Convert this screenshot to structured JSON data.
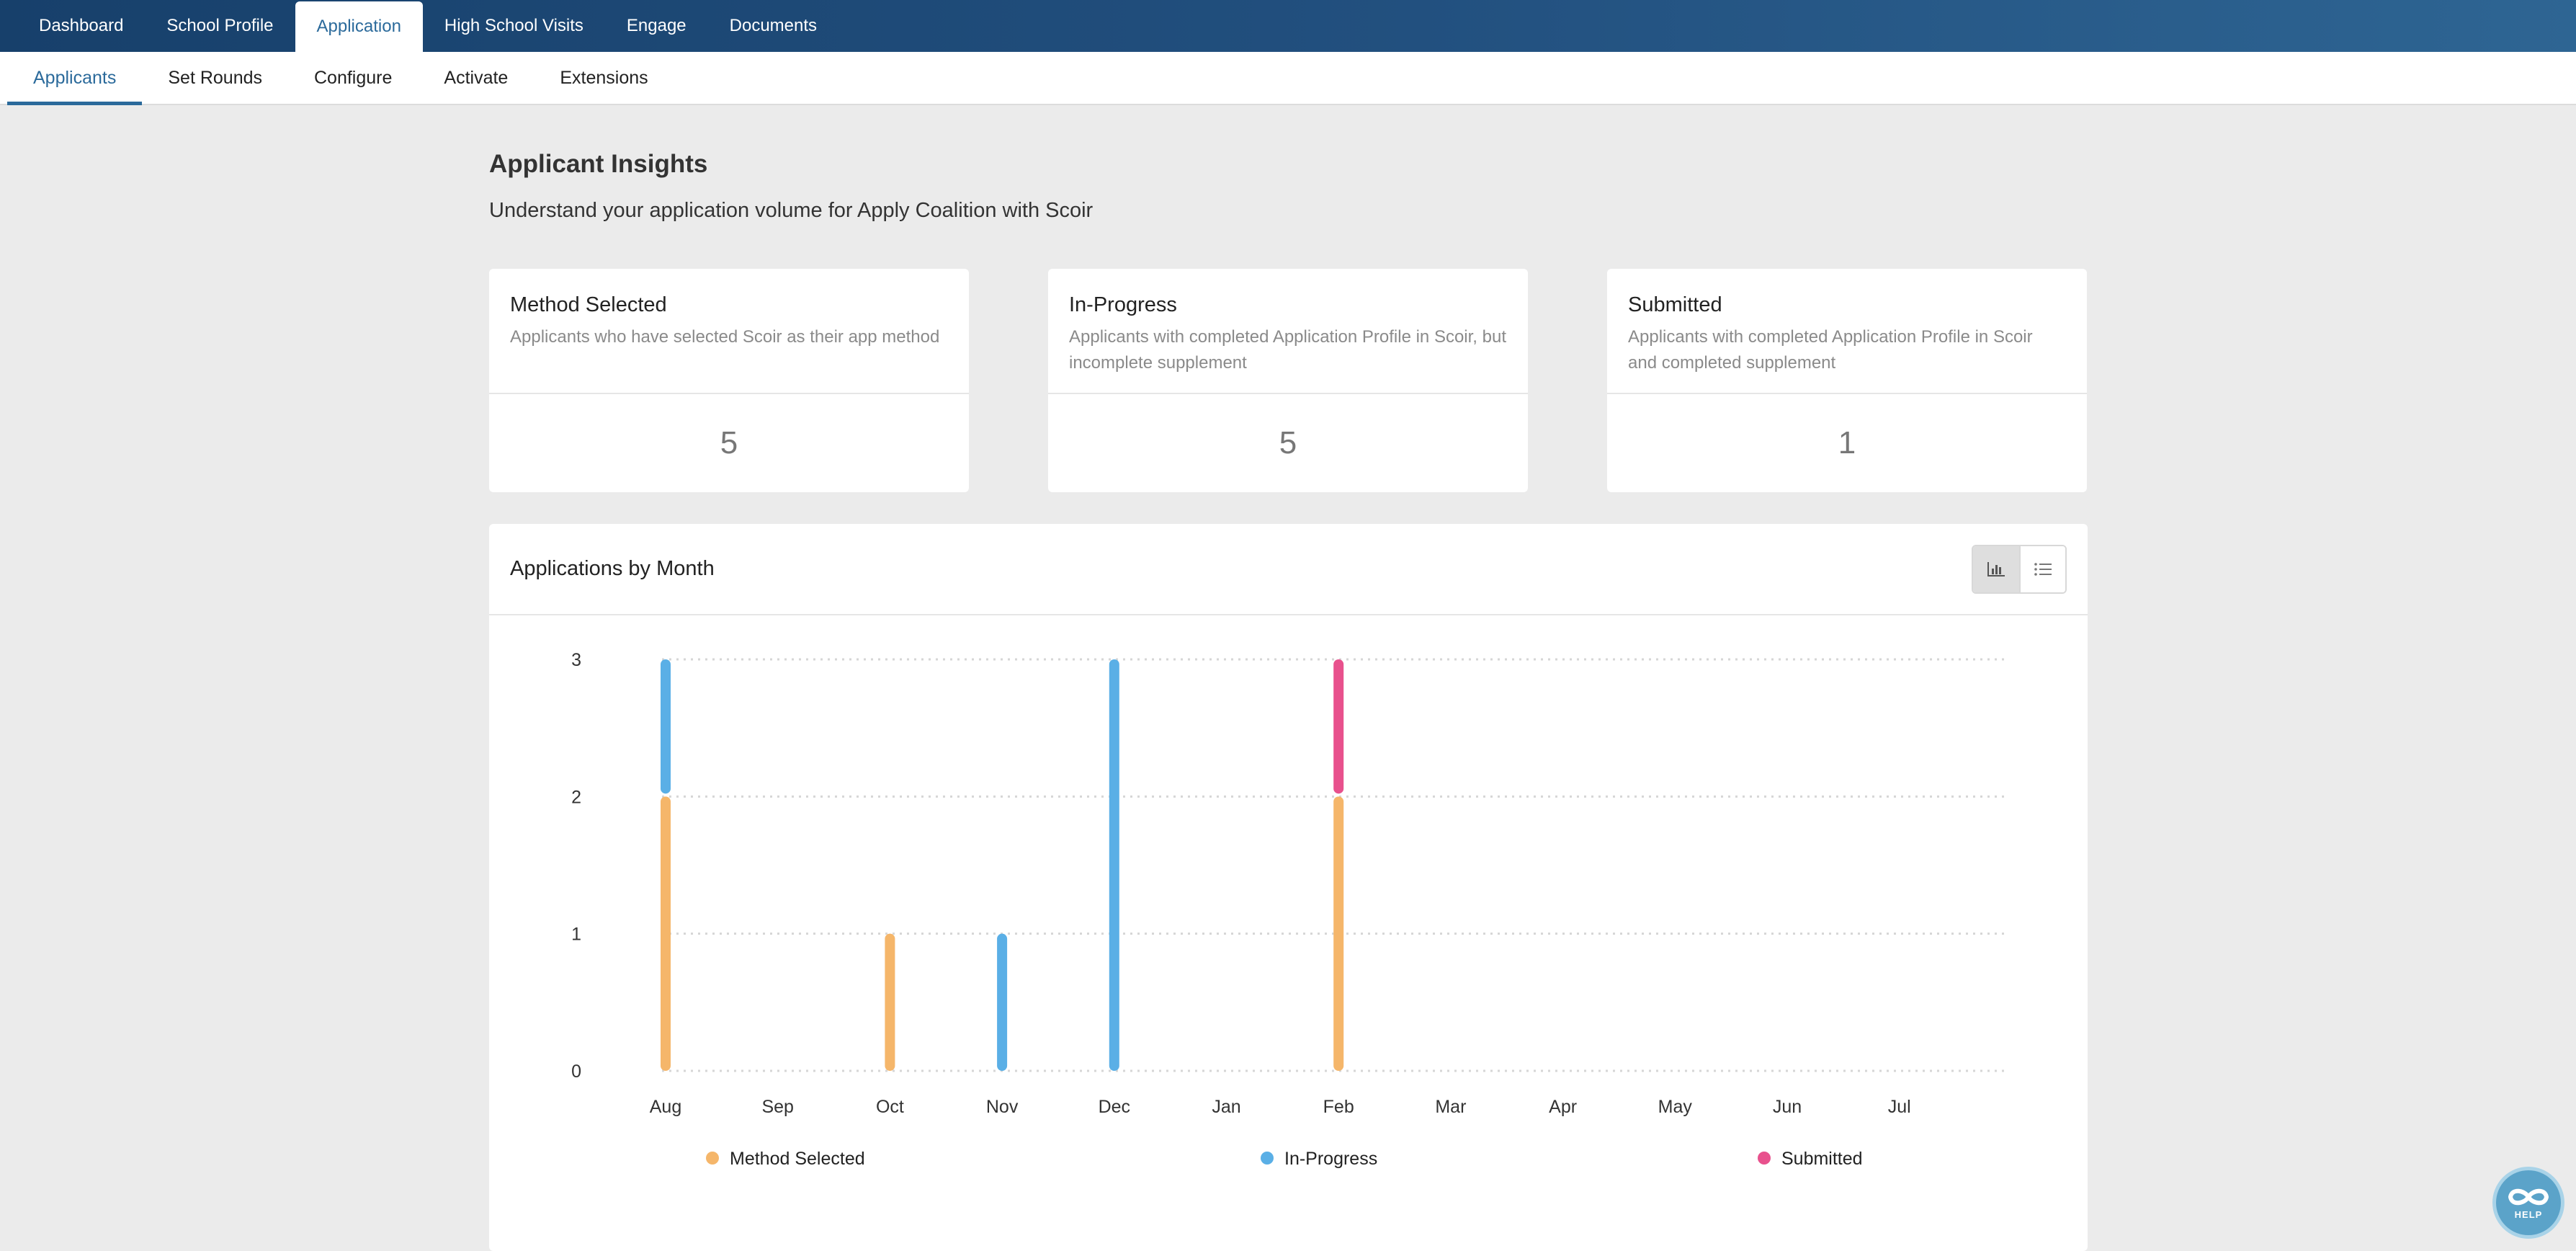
{
  "topnav": {
    "tabs": [
      {
        "label": "Dashboard"
      },
      {
        "label": "School Profile"
      },
      {
        "label": "Application",
        "active": true
      },
      {
        "label": "High School Visits"
      },
      {
        "label": "Engage"
      },
      {
        "label": "Documents"
      }
    ]
  },
  "subnav": {
    "tabs": [
      {
        "label": "Applicants",
        "active": true
      },
      {
        "label": "Set Rounds"
      },
      {
        "label": "Configure"
      },
      {
        "label": "Activate"
      },
      {
        "label": "Extensions"
      }
    ]
  },
  "page": {
    "title": "Applicant Insights",
    "subtitle": "Understand your application volume for Apply Coalition with Scoir"
  },
  "cards": [
    {
      "title": "Method Selected",
      "description": "Applicants who have selected Scoir as their app method",
      "value": "5"
    },
    {
      "title": "In-Progress",
      "description": "Applicants with completed Application Profile in Scoir, but incomplete supplement",
      "value": "5"
    },
    {
      "title": "Submitted",
      "description": "Applicants with completed Application Profile in Scoir and completed supplement",
      "value": "1"
    }
  ],
  "chart_panel": {
    "title": "Applications by Month",
    "toggle_icons": [
      "bar-chart-icon",
      "list-icon"
    ]
  },
  "chart_data": {
    "type": "bar",
    "stacked": true,
    "categories": [
      "Aug",
      "Sep",
      "Oct",
      "Nov",
      "Dec",
      "Jan",
      "Feb",
      "Mar",
      "Apr",
      "May",
      "Jun",
      "Jul"
    ],
    "series": [
      {
        "name": "Method Selected",
        "color": "#f5b66a",
        "values": [
          2,
          0,
          1,
          0,
          0,
          0,
          2,
          0,
          0,
          0,
          0,
          0
        ]
      },
      {
        "name": "In-Progress",
        "color": "#5aafe6",
        "values": [
          1,
          0,
          0,
          1,
          3,
          0,
          0,
          0,
          0,
          0,
          0,
          0
        ]
      },
      {
        "name": "Submitted",
        "color": "#e8518d",
        "values": [
          0,
          0,
          0,
          0,
          0,
          0,
          1,
          0,
          0,
          0,
          0,
          0
        ]
      }
    ],
    "yticks": [
      0,
      1,
      2,
      3
    ],
    "ylim": [
      0,
      3
    ],
    "grid": true,
    "legend_position": "bottom"
  },
  "help": {
    "label": "HELP"
  }
}
